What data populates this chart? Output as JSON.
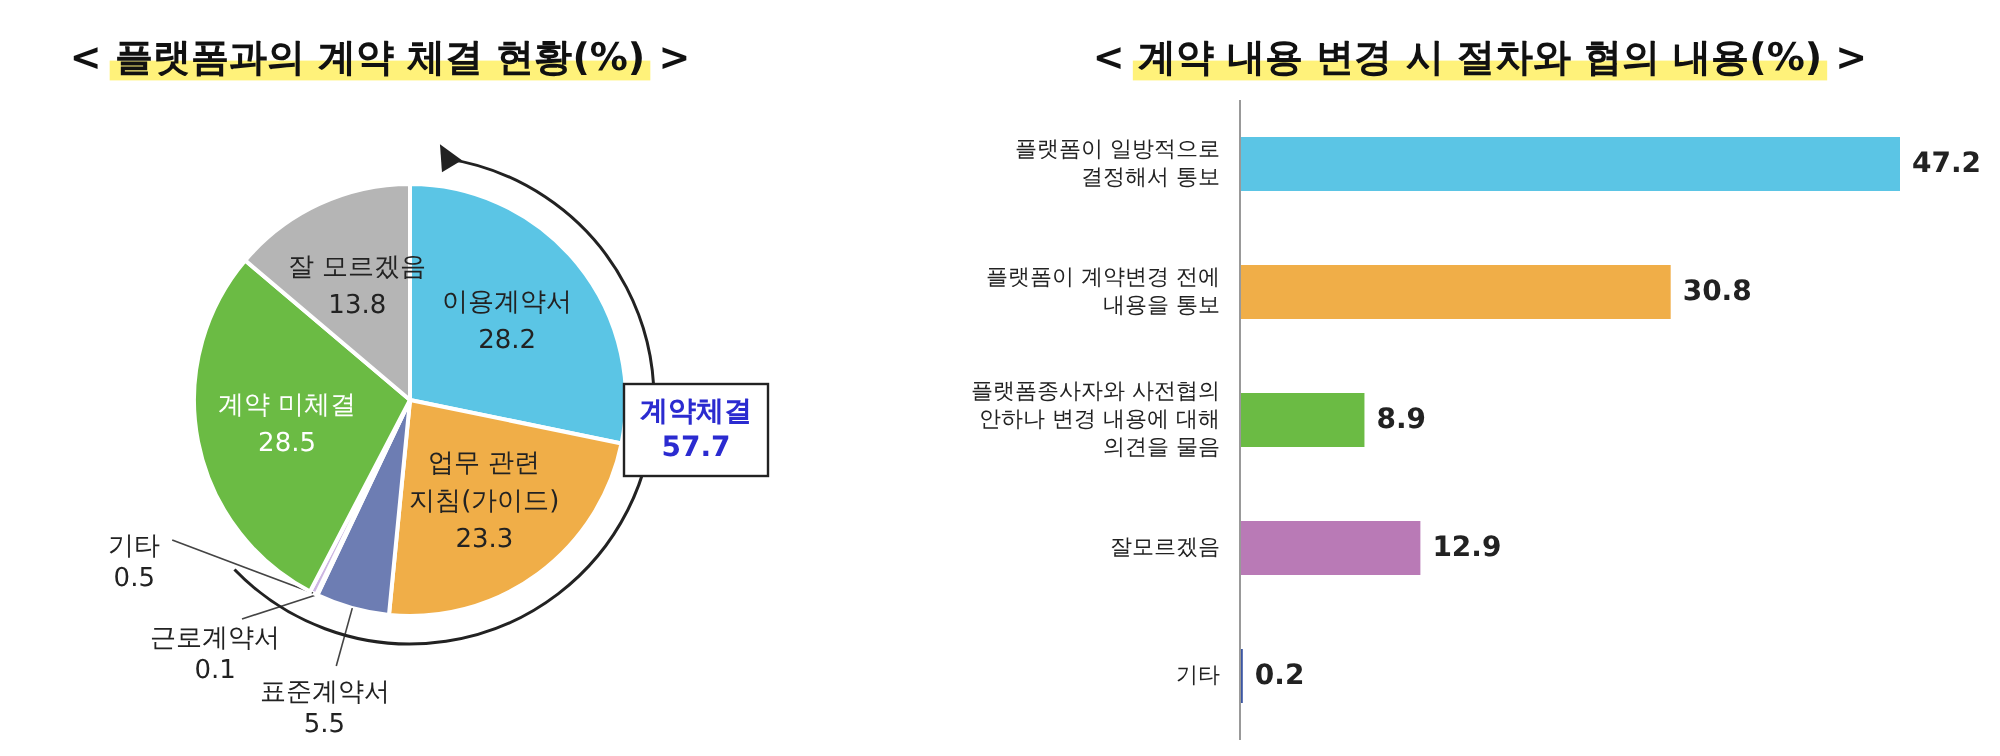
{
  "chart_data": [
    {
      "type": "pie",
      "title": "< 플랫폼과의 계약 체결 현황(%) >",
      "categories": [
        "이용계약서",
        "업무 관련\n지침(가이드)",
        "표준계약서",
        "근로계약서",
        "기타",
        "계약 미체결",
        "잘 모르겠음"
      ],
      "values": [
        28.2,
        23.3,
        5.5,
        0.1,
        0.5,
        28.5,
        13.8
      ],
      "colors": [
        "#5bc5e5",
        "#f0ae48",
        "#6d7db3",
        "#f2d01e",
        "#cdb6e2",
        "#6bbb44",
        "#b5b5b5"
      ],
      "data_labels": true,
      "annotations": [
        "계약체결\n57.7"
      ]
    },
    {
      "type": "bar",
      "orientation": "horizontal",
      "title": "< 계약 내용 변경 시 절차와 협의 내용(%) >",
      "categories": [
        "플랫폼이 일방적으로\n결정해서 통보",
        "플랫폼이 계약변경 전에\n내용을 통보",
        "플랫폼종사자와 사전협의\n안하나 변경 내용에 대해\n의견을 물음",
        "잘모르겠음",
        "기타"
      ],
      "values": [
        47.2,
        30.8,
        8.9,
        12.9,
        0.2
      ],
      "colors": [
        "#5bc5e5",
        "#f0ae48",
        "#6bbb44",
        "#b97ab6",
        "#3b56a3"
      ],
      "data_labels": true
    }
  ]
}
